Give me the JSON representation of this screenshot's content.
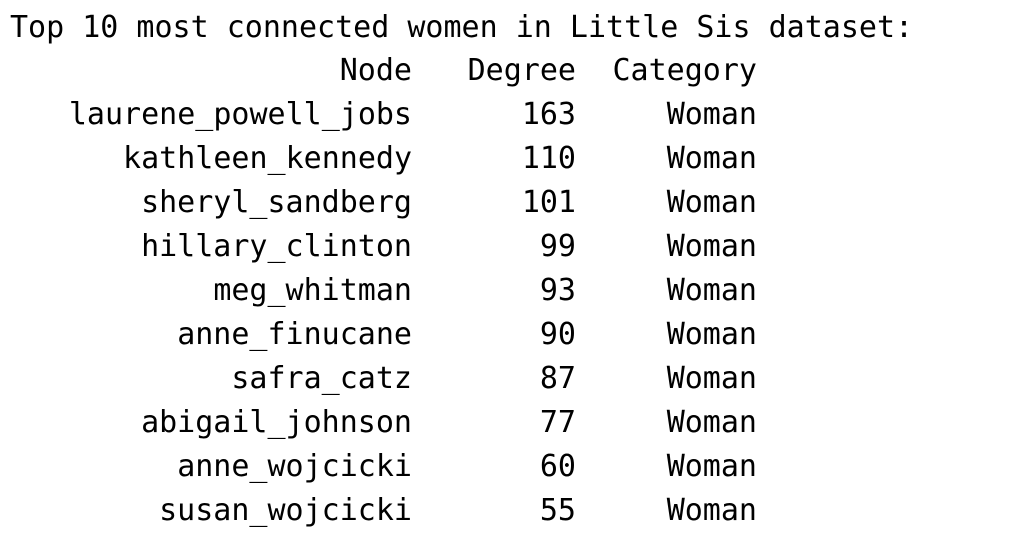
{
  "title": "Top 10 most connected women in Little Sis dataset:",
  "columns": {
    "node": "Node",
    "degree": "Degree",
    "category": "Category"
  },
  "rows": [
    {
      "node": "laurene_powell_jobs",
      "degree": "163",
      "category": "Woman"
    },
    {
      "node": "kathleen_kennedy",
      "degree": "110",
      "category": "Woman"
    },
    {
      "node": "sheryl_sandberg",
      "degree": "101",
      "category": "Woman"
    },
    {
      "node": "hillary_clinton",
      "degree": "99",
      "category": "Woman"
    },
    {
      "node": "meg_whitman",
      "degree": "93",
      "category": "Woman"
    },
    {
      "node": "anne_finucane",
      "degree": "90",
      "category": "Woman"
    },
    {
      "node": "safra_catz",
      "degree": "87",
      "category": "Woman"
    },
    {
      "node": "abigail_johnson",
      "degree": "77",
      "category": "Woman"
    },
    {
      "node": "anne_wojcicki",
      "degree": "60",
      "category": "Woman"
    },
    {
      "node": "susan_wojcicki",
      "degree": "55",
      "category": "Woman"
    }
  ]
}
